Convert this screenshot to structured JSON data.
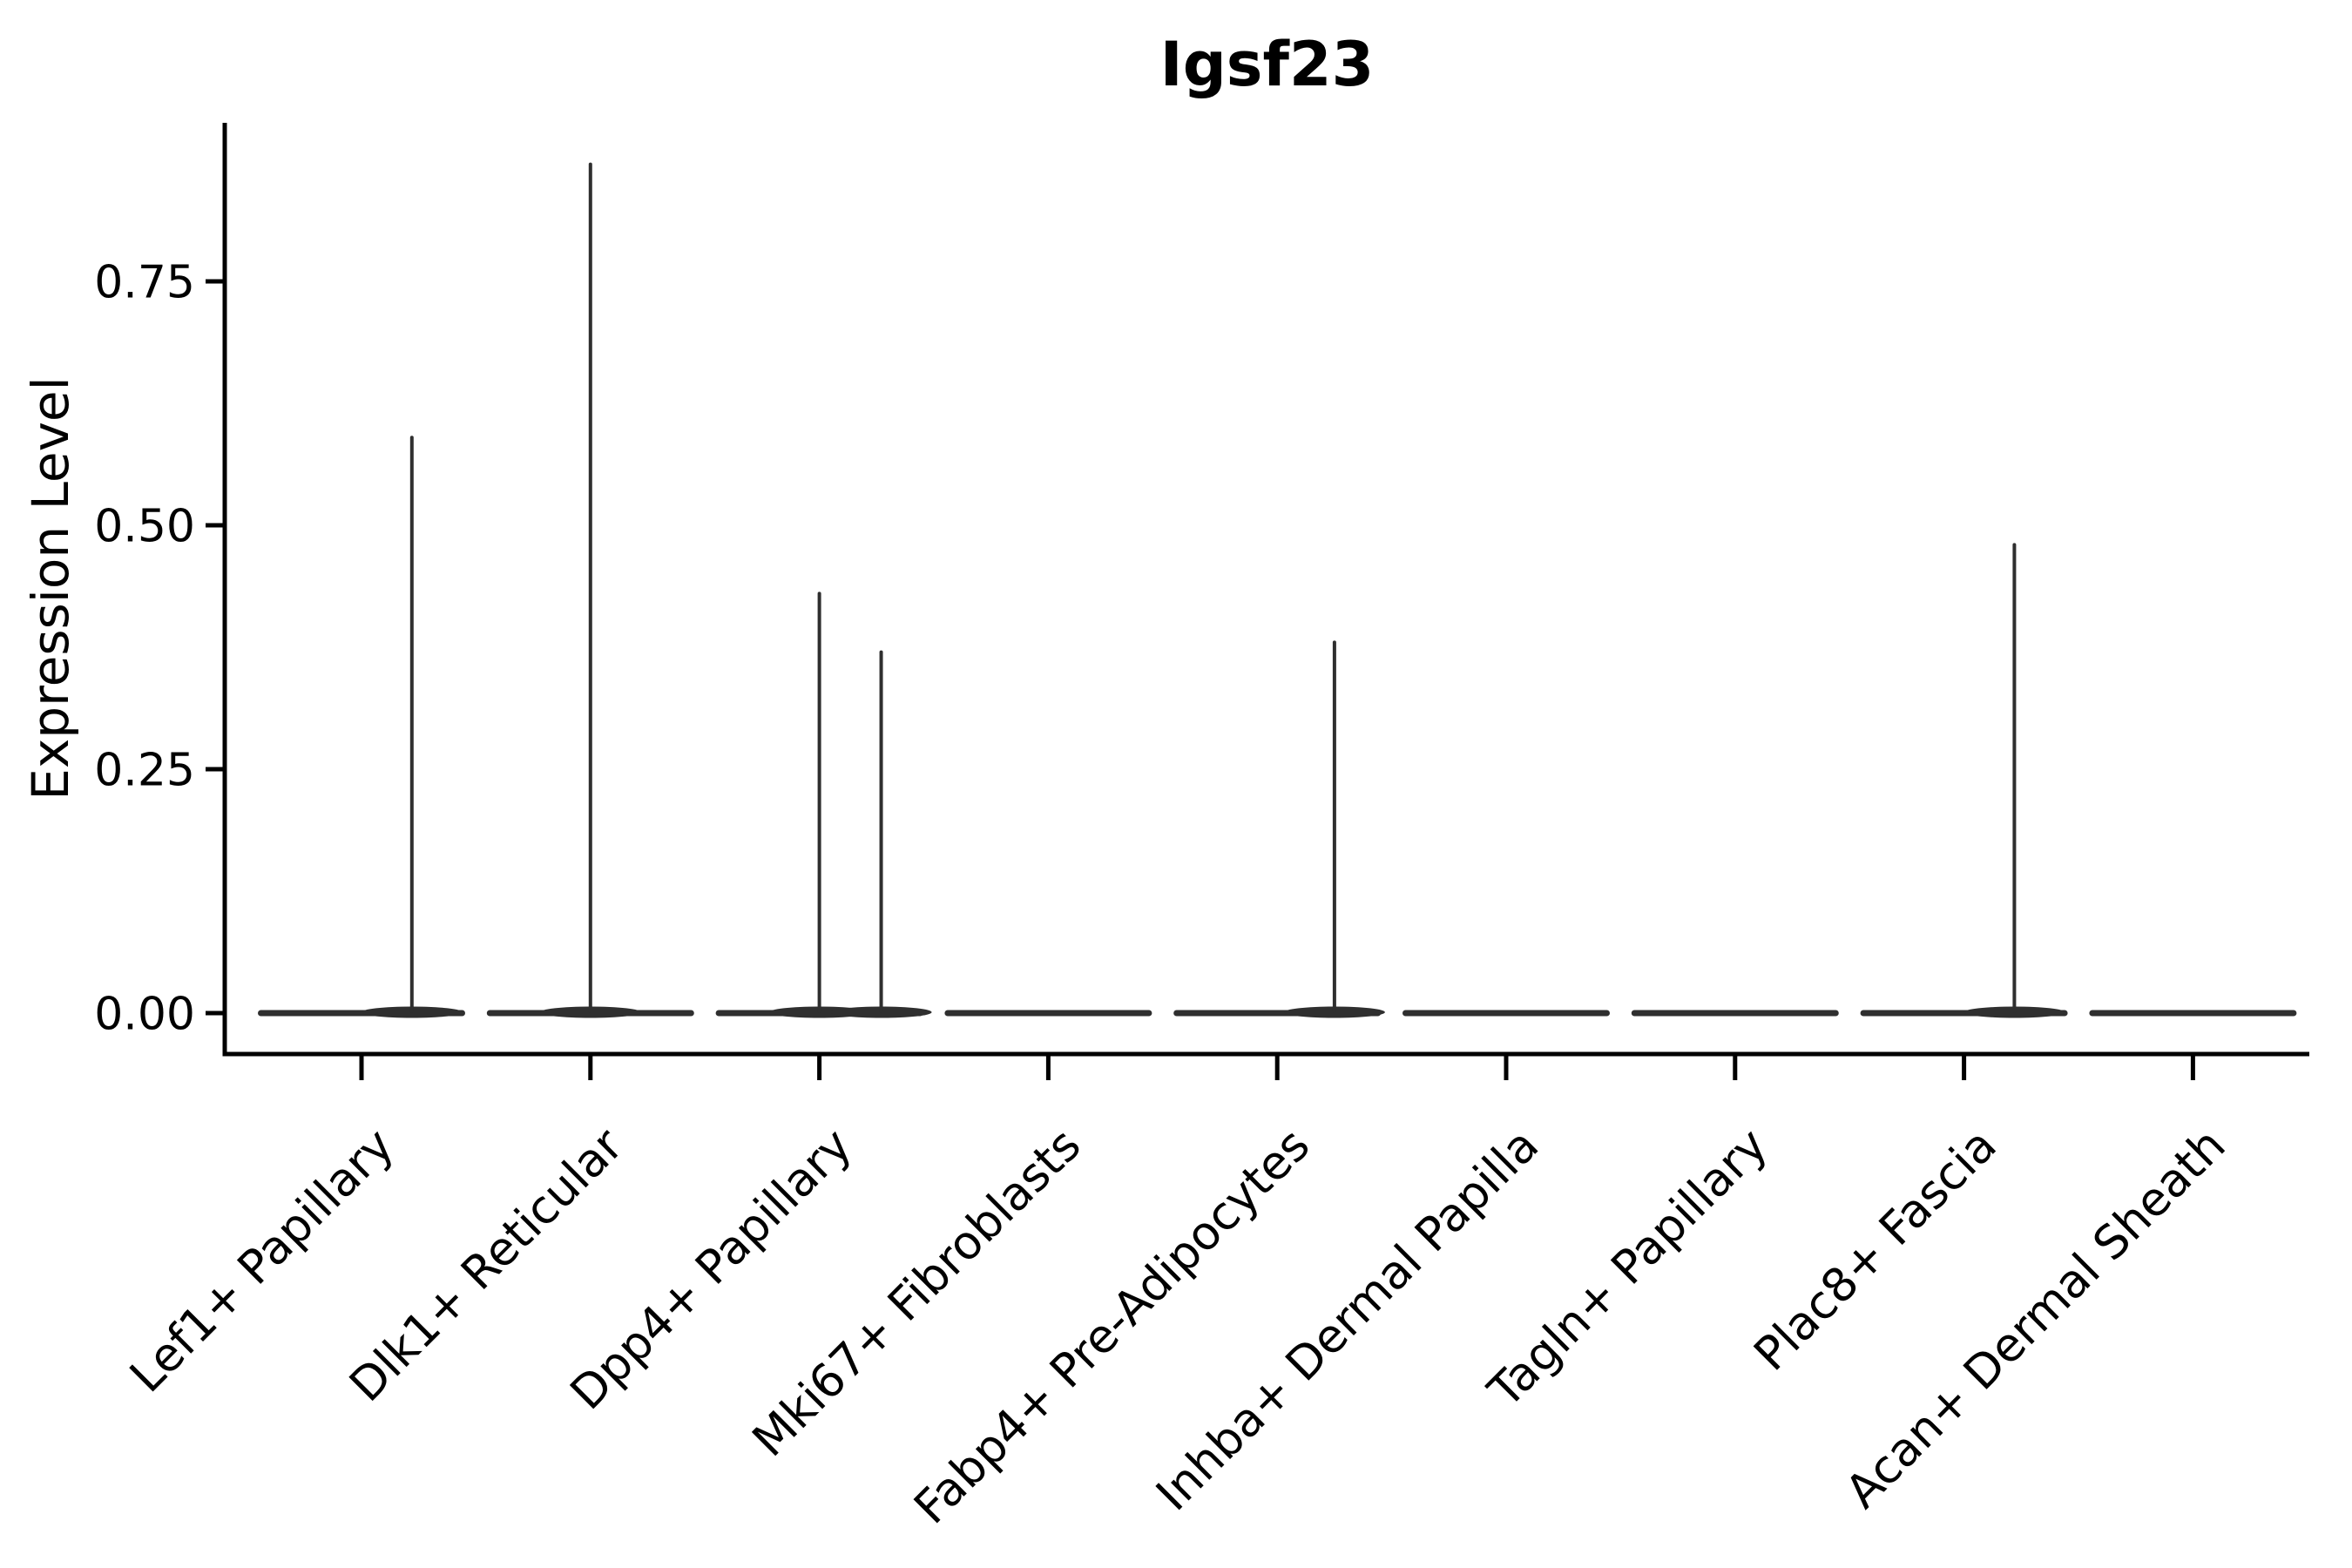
{
  "chart_data": {
    "type": "violin",
    "title": "Igsf23",
    "xlabel": "",
    "ylabel": "Expression Level",
    "ytick_labels": [
      "0.00",
      "0.25",
      "0.50",
      "0.75"
    ],
    "ytick_values": [
      0.0,
      0.25,
      0.5,
      0.75
    ],
    "ylim": [
      0.0,
      0.91
    ],
    "x_label_rotation_deg": 45,
    "legend": "none",
    "grid": "off",
    "categories": [
      "Lef1+ Papillary",
      "Dlk1+ Reticular",
      "Dpp4+ Papillary",
      "Mki67+ Fibroblasts",
      "Fabp4+ Pre-Adipocytes",
      "Inhba+ Dermal Papilla",
      "Tagln+ Papillary",
      "Plac8+ Fascia",
      "Acan+ Dermal Sheath"
    ],
    "violins": [
      {
        "category": "Lef1+ Papillary",
        "baseline_at_zero": true,
        "spikes": [
          {
            "value": 0.59,
            "offset_frac": 0.22
          }
        ]
      },
      {
        "category": "Dlk1+ Reticular",
        "baseline_at_zero": true,
        "spikes": [
          {
            "value": 0.87,
            "offset_frac": 0.0
          }
        ]
      },
      {
        "category": "Dpp4+ Papillary",
        "baseline_at_zero": true,
        "spikes": [
          {
            "value": 0.43,
            "offset_frac": 0.0
          },
          {
            "value": 0.37,
            "offset_frac": 0.27
          }
        ]
      },
      {
        "category": "Mki67+ Fibroblasts",
        "baseline_at_zero": true,
        "spikes": []
      },
      {
        "category": "Fabp4+ Pre-Adipocytes",
        "baseline_at_zero": true,
        "spikes": [
          {
            "value": 0.38,
            "offset_frac": 0.25
          }
        ]
      },
      {
        "category": "Inhba+ Dermal Papilla",
        "baseline_at_zero": true,
        "spikes": []
      },
      {
        "category": "Tagln+ Papillary",
        "baseline_at_zero": true,
        "spikes": []
      },
      {
        "category": "Plac8+ Fascia",
        "baseline_at_zero": true,
        "spikes": [
          {
            "value": 0.48,
            "offset_frac": 0.22
          }
        ]
      },
      {
        "category": "Acan+ Dermal Sheath",
        "baseline_at_zero": true,
        "spikes": []
      }
    ],
    "colors": {
      "ink": "#000000",
      "violin": "#2f2f2f",
      "background": "#ffffff"
    }
  }
}
